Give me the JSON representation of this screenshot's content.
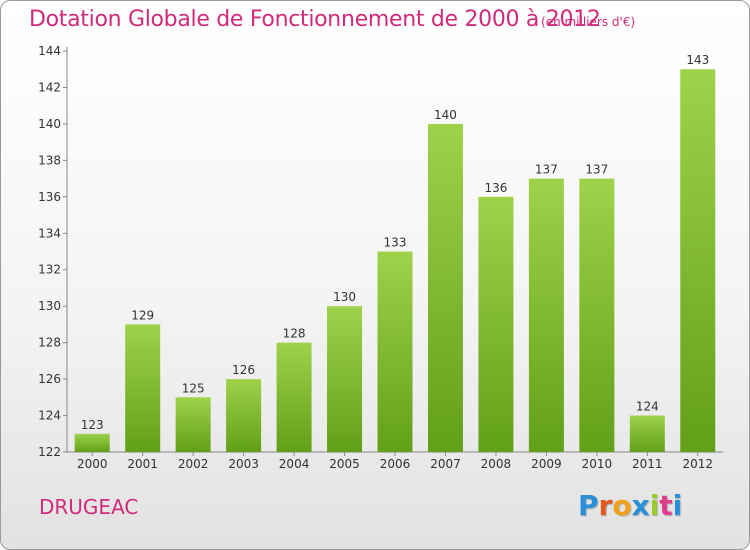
{
  "header": {
    "title": "Dotation Globale de Fonctionnement de 2000 à 2012",
    "unit": "(en milliers d'€)"
  },
  "footer": {
    "commune": "DRUGEAC",
    "logo_text": "Proxiti",
    "logo_colors": [
      "#2a8fd8",
      "#e05a1e",
      "#f2a21a",
      "#2a8fd8",
      "#9acb28",
      "#e03c8c",
      "#2a8fd8"
    ]
  },
  "colors": {
    "title": "#d22a7a",
    "bar_light": "#9ed24a",
    "bar_dark": "#62a019",
    "axis": "#888888",
    "text": "#333333"
  },
  "chart_data": {
    "type": "bar",
    "categories": [
      "2000",
      "2001",
      "2002",
      "2003",
      "2004",
      "2005",
      "2006",
      "2007",
      "2008",
      "2009",
      "2010",
      "2011",
      "2012"
    ],
    "values": [
      123,
      129,
      125,
      126,
      128,
      130,
      133,
      140,
      136,
      137,
      137,
      124,
      143
    ],
    "ylim": [
      122,
      144
    ],
    "yticks": [
      122,
      124,
      126,
      128,
      130,
      132,
      134,
      136,
      138,
      140,
      142,
      144
    ],
    "title": "Dotation Globale de Fonctionnement de 2000 à 2012",
    "xlabel": "",
    "ylabel": "",
    "grid": false,
    "data_labels": true
  }
}
